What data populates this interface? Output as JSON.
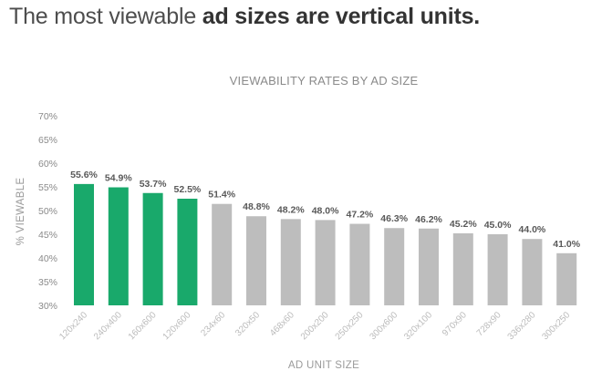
{
  "headline": {
    "prefix": "The most viewable ",
    "emphasis": "ad sizes are vertical units."
  },
  "chart_data": {
    "type": "bar",
    "title": "VIEWABILITY RATES BY AD SIZE",
    "xlabel": "AD UNIT SIZE",
    "ylabel": "% VIEWABLE",
    "ylim": [
      30,
      70
    ],
    "yticks": [
      "30%",
      "35%",
      "40%",
      "45%",
      "50%",
      "55%",
      "60%",
      "65%",
      "70%"
    ],
    "grid": false,
    "legend": "none",
    "categories": [
      "120x240",
      "240x400",
      "160x600",
      "120x600",
      "234x60",
      "320x50",
      "468x60",
      "200x200",
      "250x250",
      "300x600",
      "320x100",
      "970x90",
      "728x90",
      "336x280",
      "300x250"
    ],
    "values": [
      55.6,
      54.9,
      53.7,
      52.5,
      51.4,
      48.8,
      48.2,
      48.0,
      47.2,
      46.3,
      46.2,
      45.2,
      45.0,
      44.0,
      41.0
    ],
    "value_labels": [
      "55.6%",
      "54.9%",
      "53.7%",
      "52.5%",
      "51.4%",
      "48.8%",
      "48.2%",
      "48.0%",
      "47.2%",
      "46.3%",
      "46.2%",
      "45.2%",
      "45.0%",
      "44.0%",
      "41.0%"
    ],
    "colors": {
      "vertical": "#19a96b",
      "other": "#bdbdbd"
    },
    "highlighted_count": 4
  }
}
